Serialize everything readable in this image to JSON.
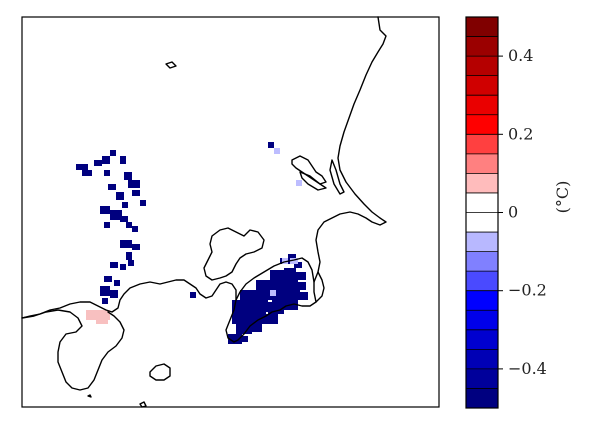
{
  "map": {
    "colormap": {
      "colors": [
        "#000080",
        "#00009b",
        "#0000b5",
        "#0000d0",
        "#0000ea",
        "#0000ff",
        "#4a4aff",
        "#8080ff",
        "#b8b8ff",
        "#ffffff",
        "#ffffff",
        "#ffbcbc",
        "#ff8080",
        "#ff4040",
        "#ff0000",
        "#ea0000",
        "#d00000",
        "#b50000",
        "#9b0000",
        "#800000"
      ],
      "vmin": -0.5,
      "vmax": 0.5,
      "tick_labels": [
        "0.4",
        "0.2",
        "0",
        "−0.2",
        "−0.4"
      ],
      "tick_values": [
        0.4,
        0.2,
        0,
        -0.2,
        -0.4
      ],
      "unit": "(°C)"
    },
    "anomaly_colors": {
      "negative_strong": "#00007f",
      "negative_weak": "#bdbdff",
      "positive_weak": "#f8c0c0"
    }
  }
}
